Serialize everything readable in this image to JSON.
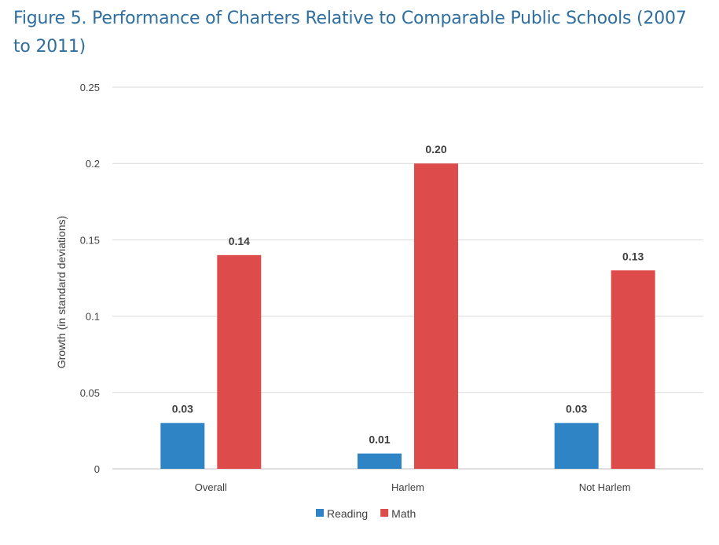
{
  "chart_data": {
    "type": "bar",
    "title": "Figure 5. Performance of Charters Relative to Comparable Public Schools (2007 to 2011)",
    "xlabel": "",
    "ylabel": "Growth (in standard deviations)",
    "ylim": [
      0,
      0.25
    ],
    "yticks": [
      {
        "value": 0,
        "label": "0"
      },
      {
        "value": 0.05,
        "label": "0.05"
      },
      {
        "value": 0.1,
        "label": "0.1"
      },
      {
        "value": 0.15,
        "label": "0.15"
      },
      {
        "value": 0.2,
        "label": "0.2"
      },
      {
        "value": 0.25,
        "label": "0.25"
      }
    ],
    "grid": true,
    "legend_position": "bottom",
    "categories": [
      "Overall",
      "Harlem",
      "Not Harlem"
    ],
    "series": [
      {
        "name": "Reading",
        "color": "#2e84c4",
        "values": [
          0.03,
          0.01,
          0.03
        ],
        "labels": [
          "0.03",
          "0.01",
          "0.03"
        ]
      },
      {
        "name": "Math",
        "color": "#de4b4b",
        "values": [
          0.14,
          0.2,
          0.13
        ],
        "labels": [
          "0.14",
          "0.20",
          "0.13"
        ]
      }
    ]
  }
}
